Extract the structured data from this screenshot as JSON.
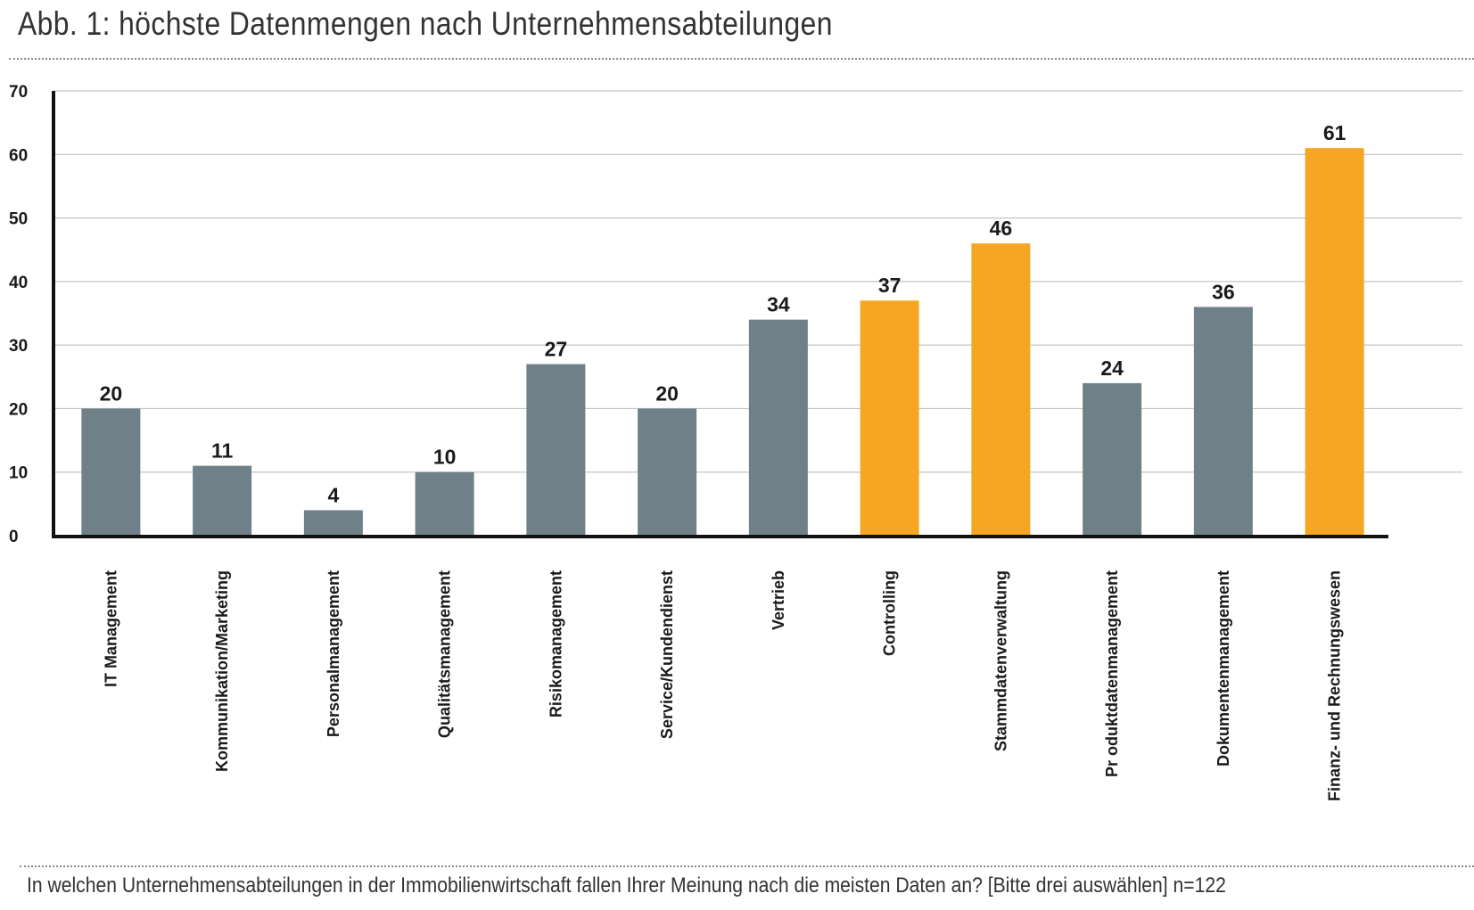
{
  "title": "Abb. 1: höchste Datenmengen nach Unternehmensabteilungen",
  "footnote": "In welchen Unternehmensabteilungen in der Immobilienwirtschaft fallen Ihrer Meinung nach die meisten Daten an? [Bitte drei auswählen] n=122",
  "colors": {
    "default": "#6f8089",
    "highlight": "#f5a623",
    "grid": "#b8b8b8",
    "axis": "#111111"
  },
  "chart_data": {
    "type": "bar",
    "categories": [
      "IT Management",
      "Kommunikation/Marketing",
      "Personalmanagement",
      "Qualitätsmanagement",
      "Risikomanagement",
      "Service/Kundendienst",
      "Vertrieb",
      "Controlling",
      "Stammdatenverwaltung",
      "Pr oduktdatenmanagement",
      "Dokumentenmanagement",
      "Finanz- und Rechnungswesen"
    ],
    "values": [
      20,
      11,
      4,
      10,
      27,
      20,
      34,
      37,
      46,
      24,
      36,
      61
    ],
    "highlighted": [
      false,
      false,
      false,
      false,
      false,
      false,
      false,
      true,
      true,
      false,
      false,
      true
    ],
    "ylim": [
      0,
      70
    ],
    "yticks": [
      "0",
      "10",
      "20",
      "30",
      "40",
      "50",
      "60",
      "70"
    ],
    "grid": true,
    "title": "",
    "xlabel": "",
    "ylabel": ""
  }
}
